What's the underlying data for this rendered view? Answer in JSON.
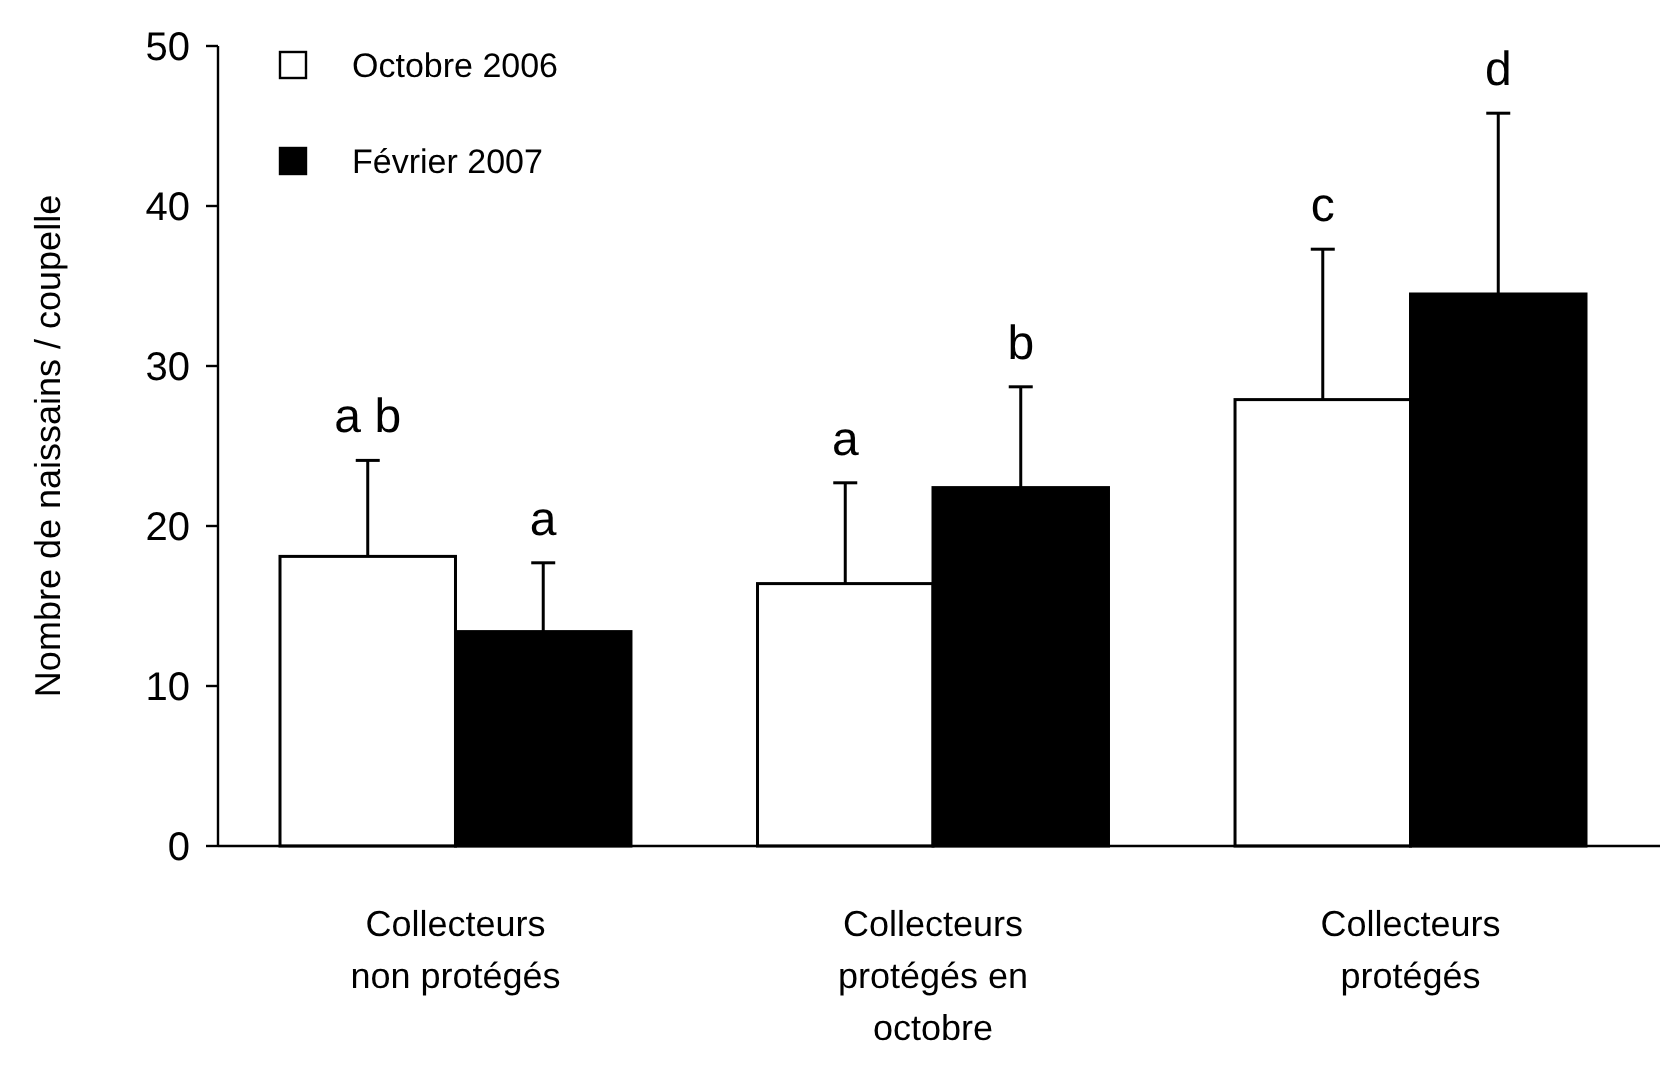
{
  "chart_data": {
    "type": "bar",
    "ylabel": "Nombre de naissains / coupelle",
    "categories": [
      "Collecteurs non protégés",
      "Collecteurs protégés en octobre",
      "Collecteurs protégés"
    ],
    "series": [
      {
        "name": "Octobre 2006",
        "color": "#ffffff",
        "values": [
          18.1,
          16.4,
          27.9
        ],
        "errors": [
          [
            18.1,
            24.1
          ],
          [
            16.4,
            22.7
          ],
          [
            27.9,
            37.3
          ]
        ]
      },
      {
        "name": "Février 2007",
        "color": "#000000",
        "values": [
          13.4,
          22.4,
          34.5
        ],
        "errors": [
          [
            13.4,
            17.7
          ],
          [
            22.4,
            28.7
          ],
          [
            34.5,
            45.8
          ]
        ]
      }
    ],
    "annotations": [
      "a b",
      "a",
      "a",
      "b",
      "c",
      "d"
    ],
    "ylim": [
      0,
      50
    ],
    "yticks": [
      0,
      10,
      20,
      30,
      40,
      50
    ],
    "grid": false,
    "legend": "top left"
  }
}
